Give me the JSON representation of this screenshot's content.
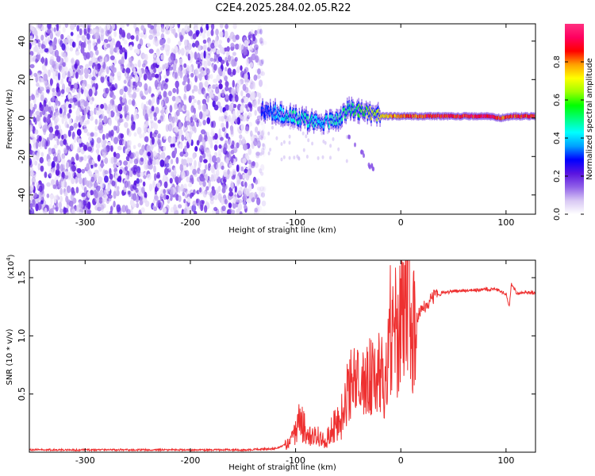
{
  "title": "C2E4.2025.284.02.05.R22",
  "chart_data": [
    {
      "type": "heatmap",
      "name": "spectrogram",
      "xlabel": "Height of straight line (km)",
      "ylabel": "Frequency (Hz)",
      "xlim": [
        -353,
        128
      ],
      "ylim": [
        -50,
        49
      ],
      "xticks": [
        -300,
        -200,
        -100,
        0,
        100
      ],
      "yticks": [
        -40,
        -20,
        0,
        20,
        40
      ],
      "xtick_labels": [
        "-300",
        "-200",
        "-100",
        "0",
        "100"
      ],
      "ytick_labels": [
        "-40",
        "-20",
        "0",
        "20",
        "40"
      ],
      "noise_region_x": [
        -353,
        -133
      ],
      "signal_trace": {
        "x": [
          -133,
          -120,
          -105,
          -90,
          -75,
          -60,
          -50,
          -40,
          -30,
          -20,
          -10,
          0,
          20,
          40,
          60,
          80,
          95,
          105,
          128
        ],
        "freq_hz": [
          4,
          3,
          1,
          -1,
          -2,
          -1,
          5,
          4,
          3,
          1,
          1,
          1,
          1,
          1,
          1,
          1,
          0,
          1,
          1
        ],
        "normalized_amplitude": [
          0.25,
          0.4,
          0.5,
          0.5,
          0.45,
          0.5,
          0.55,
          0.6,
          0.7,
          0.75,
          0.8,
          0.85,
          0.9,
          0.92,
          0.93,
          0.95,
          0.9,
          0.92,
          0.9
        ]
      },
      "colorbar": {
        "label": "Normalized spectral amplitude",
        "range": [
          0,
          1
        ],
        "ticks": [
          0.0,
          0.2,
          0.4,
          0.6,
          0.8
        ],
        "tick_labels": [
          "0.0",
          "0.2",
          "0.4",
          "0.6",
          "0.8"
        ],
        "colormap": [
          "#ffffff",
          "#d8c8f4",
          "#9060e8",
          "#5a14e0",
          "#0000ff",
          "#00a0ff",
          "#00ffff",
          "#00ff80",
          "#00ff00",
          "#a0ff00",
          "#ffff00",
          "#ffa000",
          "#ff0000",
          "#ff0060",
          "#ff3080"
        ]
      }
    },
    {
      "type": "line",
      "name": "snr",
      "xlabel": "Height of straight line (km)",
      "ylabel": "SNR (10 * v/v)",
      "yscale_label": "(x10",
      "yscale_exp": "4",
      "xlim": [
        -353,
        128
      ],
      "ylim": [
        0,
        1.65
      ],
      "xticks": [
        -300,
        -200,
        -100,
        0,
        100
      ],
      "yticks": [
        0.5,
        1.0,
        1.5
      ],
      "xtick_labels": [
        "-300",
        "-200",
        "-100",
        "0",
        "100"
      ],
      "ytick_labels": [
        "0.5",
        "1.0",
        "1.5"
      ],
      "color": "#ee3030",
      "series": [
        {
          "name": "SNR",
          "x": [
            -353,
            -300,
            -250,
            -200,
            -150,
            -120,
            -105,
            -100,
            -95,
            -90,
            -85,
            -80,
            -75,
            -70,
            -65,
            -60,
            -55,
            -50,
            -45,
            -40,
            -35,
            -30,
            -25,
            -20,
            -15,
            -10,
            -5,
            0,
            5,
            8,
            10,
            15,
            20,
            25,
            30,
            40,
            50,
            60,
            70,
            80,
            90,
            100,
            103,
            105,
            110,
            120,
            128
          ],
          "y": [
            0.02,
            0.02,
            0.02,
            0.02,
            0.02,
            0.03,
            0.08,
            0.2,
            0.28,
            0.18,
            0.12,
            0.15,
            0.1,
            0.12,
            0.2,
            0.25,
            0.35,
            0.5,
            0.6,
            0.65,
            0.55,
            0.7,
            0.6,
            0.75,
            0.6,
            0.85,
            1.0,
            1.1,
            1.3,
            1.5,
            1.05,
            1.15,
            1.22,
            1.28,
            1.33,
            1.37,
            1.38,
            1.39,
            1.39,
            1.4,
            1.4,
            1.36,
            1.25,
            1.45,
            1.37,
            1.37,
            1.37
          ]
        }
      ]
    }
  ]
}
